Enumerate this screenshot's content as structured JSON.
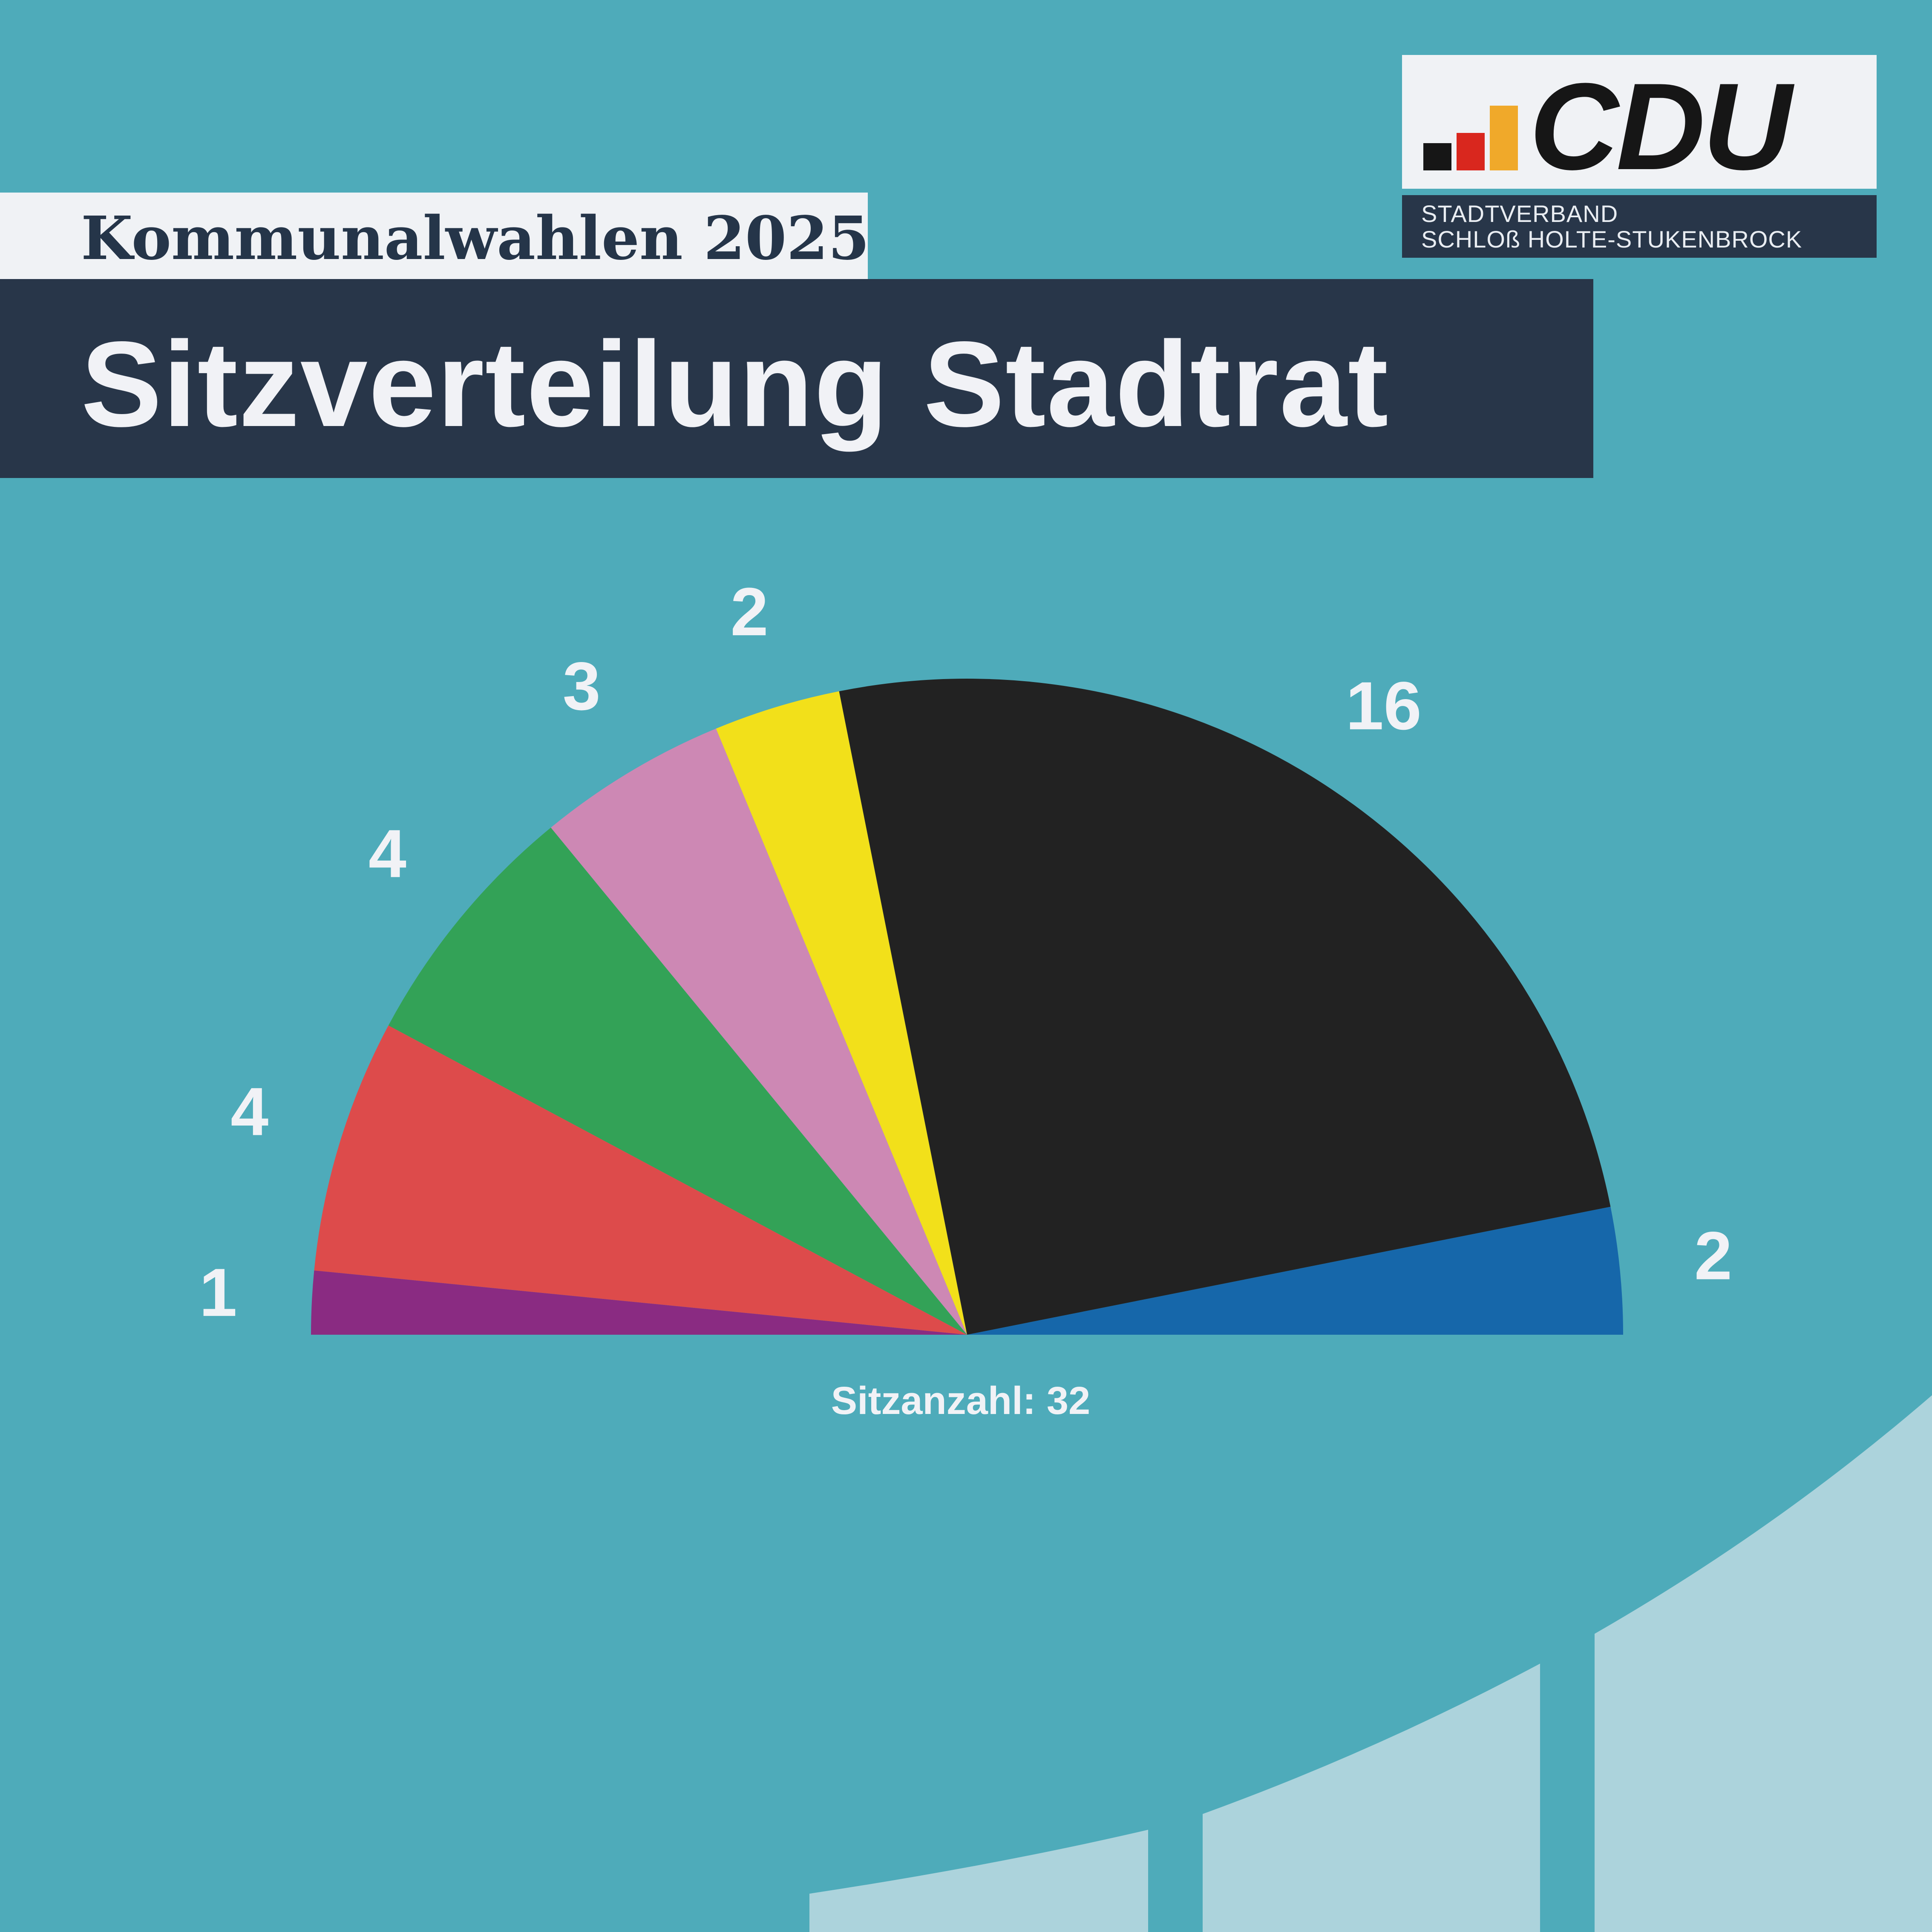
{
  "header": {
    "kicker": "Kommunalwahlen 2025",
    "title": "Sitzverteilung Stadtrat"
  },
  "logo": {
    "wordmark": "CDU",
    "subline_1": "STADTVERBAND",
    "subline_2": "SCHLOß HOLTE-STUKENBROCK"
  },
  "colors": {
    "background": "#4eabba",
    "banner_dark": "#283649",
    "banner_light": "#f0f2f5",
    "text_light": "#f1f2f6",
    "deco_shape": "#acd3dc"
  },
  "chart_data": {
    "type": "pie",
    "variant": "parliament-semicircle",
    "total_label": "Sitzanzahl: 32",
    "total": 32,
    "segments": [
      {
        "value": 1,
        "color": "#8a2b82"
      },
      {
        "value": 4,
        "color": "#dd4b4b"
      },
      {
        "value": 4,
        "color": "#33a257"
      },
      {
        "value": 3,
        "color": "#cd88b4"
      },
      {
        "value": 2,
        "color": "#f2e01a"
      },
      {
        "value": 16,
        "color": "#222222"
      },
      {
        "value": 2,
        "color": "#1667aa"
      }
    ]
  }
}
